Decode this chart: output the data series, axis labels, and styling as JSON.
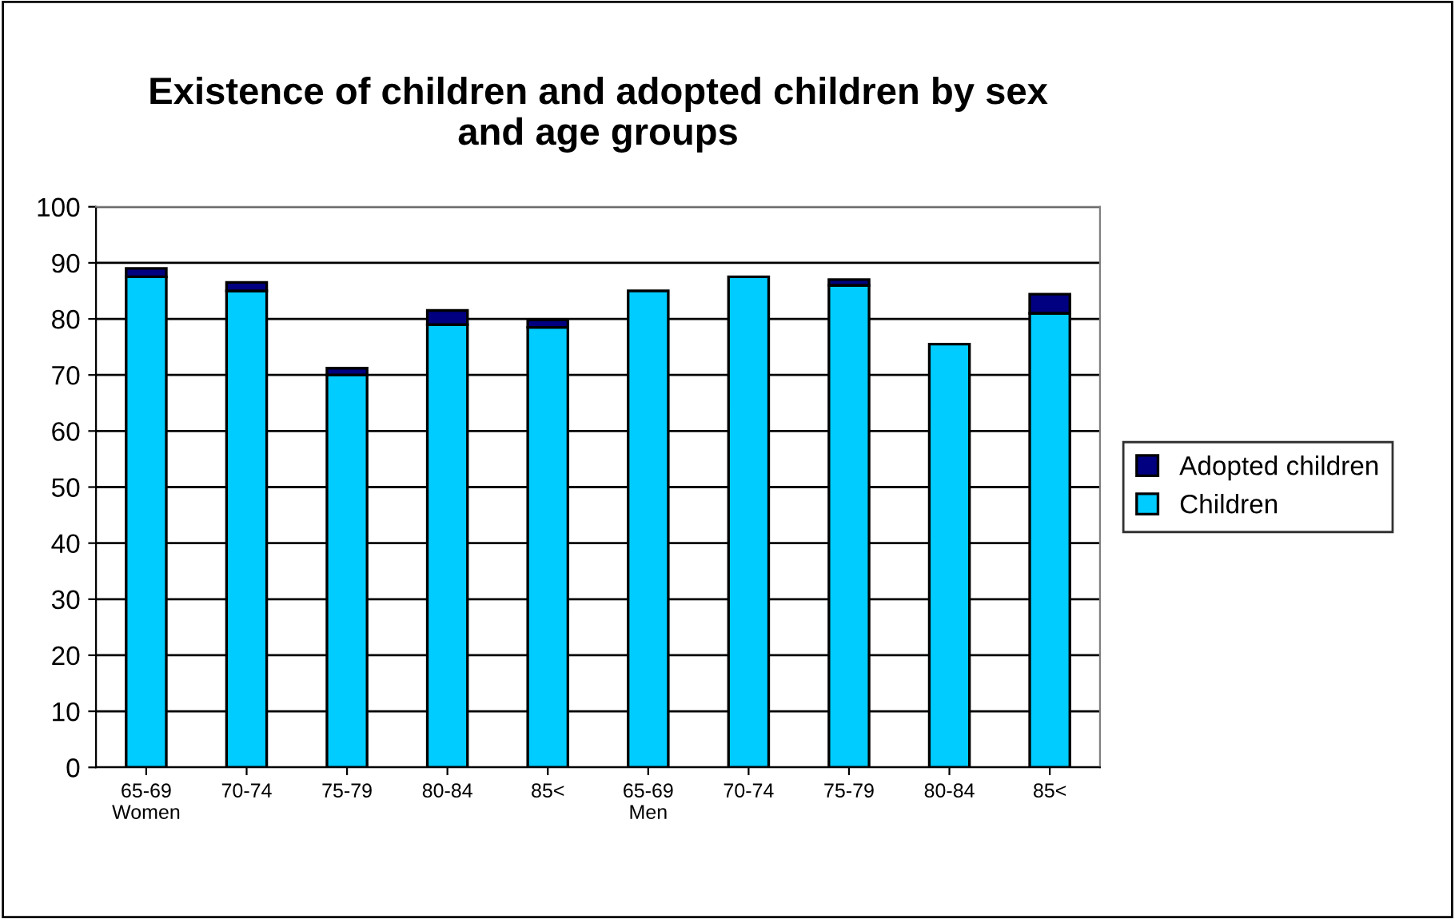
{
  "chart_data": {
    "type": "bar",
    "title": "Existence of children and adopted children by sex\nand age groups",
    "categories": [
      "65-69\nWomen",
      "70-74",
      "75-79",
      "80-84",
      "85<",
      "65-69\nMen",
      "70-74",
      "75-79",
      "80-84",
      "85<"
    ],
    "stacked": true,
    "series": [
      {
        "name": "Children",
        "color": "#00ccff",
        "values": [
          87.5,
          85,
          70,
          79,
          78.5,
          85,
          87.5,
          86,
          75.5,
          81
        ]
      },
      {
        "name": "Adopted children",
        "color": "#000080",
        "values": [
          1.5,
          1.5,
          1.2,
          2.5,
          1.3,
          null,
          null,
          1,
          null,
          3.4
        ]
      }
    ],
    "ylim": [
      0,
      100
    ],
    "yticks": [
      0,
      10,
      20,
      30,
      40,
      50,
      60,
      70,
      80,
      90,
      100
    ],
    "grid": "y",
    "legend": "right"
  }
}
